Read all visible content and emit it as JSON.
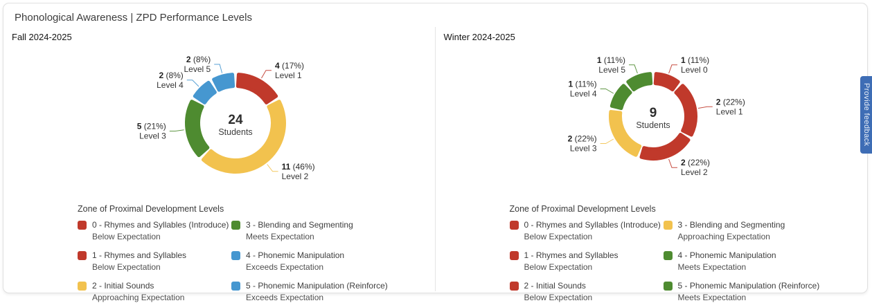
{
  "card": {
    "title": "Phonological Awareness | ZPD Performance Levels",
    "feedback_label": "Provide feedback"
  },
  "colors": {
    "red": "#c0392b",
    "yellow": "#f2c24e",
    "green": "#4e8b30",
    "blue": "#4697d0",
    "feedback_blue": "#3e6db5"
  },
  "chart_data": [
    {
      "type": "donut",
      "title": "Fall 2024-2025",
      "center_value": "24",
      "center_label": "Students",
      "segments": [
        {
          "level": "Level 1",
          "count": 4,
          "pct": 17,
          "color": "#c0392b"
        },
        {
          "level": "Level 2",
          "count": 11,
          "pct": 46,
          "color": "#f2c24e"
        },
        {
          "level": "Level 3",
          "count": 5,
          "pct": 21,
          "color": "#4e8b30"
        },
        {
          "level": "Level 4",
          "count": 2,
          "pct": 8,
          "color": "#4697d0"
        },
        {
          "level": "Level 5",
          "count": 2,
          "pct": 8,
          "color": "#4697d0"
        }
      ],
      "legend": {
        "title": "Zone of Proximal Development Levels",
        "items": [
          {
            "color": "#c0392b",
            "label": "0 - Rhymes and Syllables (Introduce)",
            "sublabel": "Below Expectation"
          },
          {
            "color": "#c0392b",
            "label": "1 - Rhymes and Syllables",
            "sublabel": "Below Expectation"
          },
          {
            "color": "#f2c24e",
            "label": "2 - Initial Sounds",
            "sublabel": "Approaching Expectation"
          },
          {
            "color": "#4e8b30",
            "label": "3 - Blending and Segmenting",
            "sublabel": "Meets Expectation"
          },
          {
            "color": "#4697d0",
            "label": "4 - Phonemic Manipulation",
            "sublabel": "Exceeds Expectation"
          },
          {
            "color": "#4697d0",
            "label": "5 - Phonemic Manipulation (Reinforce)",
            "sublabel": "Exceeds Expectation"
          }
        ]
      }
    },
    {
      "type": "donut",
      "title": "Winter 2024-2025",
      "center_value": "9",
      "center_label": "Students",
      "segments": [
        {
          "level": "Level 0",
          "count": 1,
          "pct": 11,
          "color": "#c0392b"
        },
        {
          "level": "Level 1",
          "count": 2,
          "pct": 22,
          "color": "#c0392b"
        },
        {
          "level": "Level 2",
          "count": 2,
          "pct": 22,
          "color": "#c0392b"
        },
        {
          "level": "Level 3",
          "count": 2,
          "pct": 22,
          "color": "#f2c24e"
        },
        {
          "level": "Level 4",
          "count": 1,
          "pct": 11,
          "color": "#4e8b30"
        },
        {
          "level": "Level 5",
          "count": 1,
          "pct": 11,
          "color": "#4e8b30"
        }
      ],
      "legend": {
        "title": "Zone of Proximal Development Levels",
        "items": [
          {
            "color": "#c0392b",
            "label": "0 - Rhymes and Syllables (Introduce)",
            "sublabel": "Below Expectation"
          },
          {
            "color": "#c0392b",
            "label": "1 - Rhymes and Syllables",
            "sublabel": "Below Expectation"
          },
          {
            "color": "#c0392b",
            "label": "2 - Initial Sounds",
            "sublabel": "Below Expectation"
          },
          {
            "color": "#f2c24e",
            "label": "3 - Blending and Segmenting",
            "sublabel": "Approaching Expectation"
          },
          {
            "color": "#4e8b30",
            "label": "4 - Phonemic Manipulation",
            "sublabel": "Meets Expectation"
          },
          {
            "color": "#4e8b30",
            "label": "5 - Phonemic Manipulation (Reinforce)",
            "sublabel": "Meets Expectation"
          }
        ]
      }
    }
  ]
}
